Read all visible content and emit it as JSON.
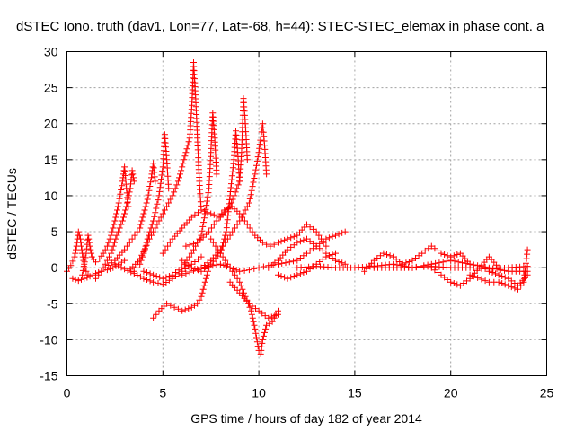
{
  "chart_data": {
    "type": "scatter",
    "title": "dSTEC Iono. truth (dav1, Lon=77, Lat=-68, h=44): STEC-STEC_elemax in phase cont. a",
    "xlabel": "GPS time / hours of day 182 of year 2014",
    "ylabel": "dSTEC  / TECUs",
    "xlim": [
      0,
      25
    ],
    "ylim": [
      -15,
      30
    ],
    "xticks": [
      0,
      5,
      10,
      15,
      20,
      25
    ],
    "yticks": [
      -15,
      -10,
      -5,
      0,
      5,
      10,
      15,
      20,
      25,
      30
    ],
    "grid": true,
    "marker": "+",
    "series_color": "#ff0000",
    "series": [
      {
        "arcs": [
          [
            [
              0.0,
              -0.5
            ],
            [
              0.2,
              0.3
            ],
            [
              0.4,
              1.5
            ],
            [
              0.5,
              3.0
            ],
            [
              0.6,
              5.0
            ],
            [
              0.7,
              4.0
            ],
            [
              0.8,
              2.0
            ],
            [
              0.9,
              0.5
            ],
            [
              1.0,
              -0.5
            ],
            [
              1.1,
              -1.0
            ]
          ],
          [
            [
              0.3,
              -1.5
            ],
            [
              0.6,
              -1.8
            ],
            [
              0.9,
              -1.5
            ],
            [
              1.2,
              -1.2
            ],
            [
              1.5,
              -0.8
            ],
            [
              1.8,
              -0.5
            ],
            [
              2.1,
              -0.3
            ],
            [
              2.4,
              0.0
            ],
            [
              2.7,
              0.5
            ],
            [
              3.0,
              1.0
            ]
          ],
          [
            [
              0.8,
              -1.0
            ],
            [
              1.0,
              2.0
            ],
            [
              1.1,
              4.5
            ],
            [
              1.2,
              3.0
            ],
            [
              1.3,
              1.5
            ],
            [
              1.5,
              0.8
            ],
            [
              1.7,
              1.2
            ],
            [
              1.9,
              2.0
            ],
            [
              2.1,
              3.0
            ],
            [
              2.3,
              4.5
            ],
            [
              2.5,
              6.5
            ],
            [
              2.7,
              9.0
            ],
            [
              2.9,
              12.0
            ],
            [
              3.0,
              14.0
            ],
            [
              3.1,
              11.0
            ],
            [
              3.2,
              8.5
            ]
          ],
          [
            [
              1.5,
              -1.5
            ],
            [
              1.8,
              -0.5
            ],
            [
              2.0,
              0.5
            ],
            [
              2.3,
              2.0
            ],
            [
              2.6,
              4.5
            ],
            [
              2.9,
              6.5
            ],
            [
              3.1,
              8.5
            ],
            [
              3.3,
              11.0
            ],
            [
              3.4,
              13.5
            ],
            [
              3.5,
              12.0
            ]
          ],
          [
            [
              2.0,
              0.0
            ],
            [
              2.5,
              1.0
            ],
            [
              3.0,
              2.5
            ],
            [
              3.4,
              4.0
            ],
            [
              3.8,
              5.5
            ],
            [
              4.0,
              7.5
            ],
            [
              4.2,
              9.5
            ],
            [
              4.4,
              12.5
            ],
            [
              4.5,
              14.5
            ],
            [
              4.6,
              12.0
            ]
          ],
          [
            [
              3.5,
              -0.5
            ],
            [
              3.8,
              0.5
            ],
            [
              4.0,
              2.0
            ],
            [
              4.2,
              4.0
            ],
            [
              4.5,
              6.5
            ],
            [
              4.8,
              10.0
            ],
            [
              5.0,
              14.0
            ],
            [
              5.1,
              18.5
            ],
            [
              5.2,
              15.0
            ],
            [
              5.3,
              11.0
            ]
          ],
          [
            [
              3.3,
              -0.2
            ],
            [
              3.7,
              0.8
            ],
            [
              4.0,
              2.2
            ],
            [
              4.3,
              4.0
            ],
            [
              4.6,
              5.5
            ],
            [
              4.9,
              7.0
            ],
            [
              5.2,
              8.5
            ],
            [
              5.5,
              10.0
            ],
            [
              5.8,
              12.0
            ],
            [
              6.0,
              14.0
            ],
            [
              6.2,
              16.0
            ],
            [
              6.4,
              18.0
            ],
            [
              6.5,
              22.0
            ],
            [
              6.6,
              28.5
            ],
            [
              6.7,
              24.0
            ],
            [
              6.8,
              18.0
            ],
            [
              6.9,
              12.0
            ],
            [
              7.0,
              8.0
            ]
          ],
          [
            [
              4.5,
              -7.0
            ],
            [
              4.8,
              -6.0
            ],
            [
              5.2,
              -5.0
            ],
            [
              5.6,
              -5.5
            ],
            [
              6.0,
              -6.0
            ],
            [
              6.5,
              -5.5
            ],
            [
              6.8,
              -5.0
            ],
            [
              7.0,
              -4.0
            ],
            [
              7.2,
              -2.0
            ],
            [
              7.4,
              0.0
            ]
          ],
          [
            [
              2.5,
              0.5
            ],
            [
              3.0,
              -0.2
            ],
            [
              3.5,
              -0.8
            ],
            [
              4.0,
              -1.5
            ],
            [
              4.5,
              -2.0
            ],
            [
              5.0,
              -2.3
            ],
            [
              5.5,
              -1.5
            ],
            [
              6.0,
              -0.5
            ],
            [
              6.5,
              0.5
            ],
            [
              7.0,
              1.5
            ]
          ],
          [
            [
              4.0,
              -0.5
            ],
            [
              4.5,
              -1.0
            ],
            [
              5.0,
              -1.5
            ],
            [
              5.5,
              -1.0
            ],
            [
              6.0,
              0.0
            ],
            [
              6.5,
              2.0
            ],
            [
              7.0,
              4.5
            ],
            [
              7.2,
              7.5
            ],
            [
              7.4,
              11.0
            ],
            [
              7.5,
              16.0
            ],
            [
              7.6,
              21.5
            ],
            [
              7.7,
              18.0
            ],
            [
              7.8,
              13.0
            ]
          ],
          [
            [
              5.0,
              2.0
            ],
            [
              5.5,
              4.0
            ],
            [
              6.0,
              5.5
            ],
            [
              6.5,
              7.0
            ],
            [
              7.0,
              8.0
            ],
            [
              7.5,
              7.5
            ],
            [
              8.0,
              7.0
            ],
            [
              8.5,
              8.5
            ],
            [
              9.0,
              12.0
            ],
            [
              9.1,
              16.0
            ],
            [
              9.2,
              23.5
            ],
            [
              9.3,
              20.0
            ],
            [
              9.4,
              15.0
            ]
          ],
          [
            [
              6.0,
              1.0
            ],
            [
              6.5,
              0.0
            ],
            [
              7.0,
              -0.5
            ],
            [
              7.5,
              0.5
            ],
            [
              8.0,
              2.0
            ],
            [
              8.3,
              5.0
            ],
            [
              8.5,
              10.0
            ],
            [
              8.7,
              15.0
            ],
            [
              8.8,
              19.0
            ],
            [
              8.9,
              16.0
            ],
            [
              9.0,
              12.0
            ]
          ],
          [
            [
              7.0,
              0.0
            ],
            [
              7.5,
              1.0
            ],
            [
              8.0,
              2.5
            ],
            [
              8.5,
              4.5
            ],
            [
              9.0,
              6.5
            ],
            [
              9.5,
              9.0
            ],
            [
              9.8,
              13.0
            ],
            [
              10.0,
              16.0
            ],
            [
              10.2,
              20.0
            ],
            [
              10.3,
              17.0
            ],
            [
              10.4,
              13.0
            ]
          ],
          [
            [
              6.2,
              3.0
            ],
            [
              6.8,
              3.5
            ],
            [
              7.4,
              5.0
            ],
            [
              7.8,
              6.5
            ],
            [
              8.2,
              8.0
            ],
            [
              8.6,
              8.5
            ],
            [
              9.0,
              7.5
            ],
            [
              9.4,
              6.0
            ],
            [
              9.8,
              4.5
            ],
            [
              10.2,
              3.5
            ],
            [
              10.6,
              3.0
            ],
            [
              11.0,
              3.5
            ],
            [
              11.5,
              4.0
            ],
            [
              12.0,
              4.5
            ],
            [
              12.5,
              6.0
            ],
            [
              13.0,
              5.0
            ],
            [
              13.5,
              3.0
            ]
          ],
          [
            [
              7.5,
              4.0
            ],
            [
              8.0,
              2.0
            ],
            [
              8.5,
              0.0
            ],
            [
              9.0,
              -2.0
            ],
            [
              9.3,
              -4.0
            ],
            [
              9.6,
              -6.0
            ],
            [
              9.8,
              -8.5
            ],
            [
              10.0,
              -11.5
            ],
            [
              10.1,
              -12.0
            ],
            [
              10.2,
              -10.0
            ],
            [
              10.4,
              -8.0
            ],
            [
              10.7,
              -7.5
            ],
            [
              11.0,
              -6.0
            ]
          ],
          [
            [
              8.5,
              -2.0
            ],
            [
              9.0,
              -3.5
            ],
            [
              9.5,
              -5.0
            ],
            [
              10.0,
              -6.0
            ],
            [
              10.5,
              -7.0
            ],
            [
              11.0,
              -6.5
            ]
          ],
          [
            [
              6.0,
              -1.0
            ],
            [
              7.0,
              0.0
            ],
            [
              8.0,
              0.5
            ],
            [
              8.5,
              0.0
            ],
            [
              9.0,
              -0.5
            ],
            [
              9.5,
              -0.3
            ],
            [
              10.0,
              0.0
            ],
            [
              10.5,
              0.3
            ],
            [
              11.0,
              0.5
            ],
            [
              12.0,
              1.0
            ],
            [
              12.5,
              2.0
            ],
            [
              13.0,
              3.0
            ],
            [
              13.5,
              4.0
            ],
            [
              14.0,
              4.5
            ],
            [
              14.5,
              5.0
            ]
          ],
          [
            [
              11.0,
              -1.0
            ],
            [
              11.5,
              -1.5
            ],
            [
              12.0,
              -1.0
            ],
            [
              12.5,
              -0.5
            ],
            [
              13.0,
              0.5
            ],
            [
              13.5,
              1.5
            ],
            [
              14.0,
              2.0
            ]
          ],
          [
            [
              10.5,
              0.0
            ],
            [
              11.0,
              1.0
            ],
            [
              11.5,
              2.5
            ],
            [
              12.0,
              3.5
            ],
            [
              12.5,
              4.0
            ],
            [
              13.0,
              3.0
            ],
            [
              13.5,
              2.0
            ],
            [
              14.0,
              1.0
            ],
            [
              14.5,
              0.5
            ]
          ],
          [
            [
              12.0,
              0.0
            ],
            [
              13.0,
              0.2
            ],
            [
              14.0,
              0.0
            ],
            [
              15.0,
              0.0
            ],
            [
              16.0,
              0.2
            ],
            [
              17.0,
              0.5
            ],
            [
              18.0,
              0.0
            ],
            [
              19.0,
              0.5
            ],
            [
              20.0,
              1.0
            ],
            [
              21.0,
              0.5
            ],
            [
              22.0,
              0.0
            ],
            [
              23.0,
              -0.5
            ],
            [
              24.0,
              -0.5
            ]
          ],
          [
            [
              15.5,
              -0.5
            ],
            [
              16.0,
              1.0
            ],
            [
              16.5,
              2.0
            ],
            [
              17.0,
              1.5
            ],
            [
              17.5,
              0.5
            ],
            [
              18.0,
              1.0
            ],
            [
              18.5,
              2.0
            ],
            [
              19.0,
              3.0
            ],
            [
              19.5,
              2.0
            ],
            [
              20.0,
              1.5
            ],
            [
              20.5,
              2.0
            ],
            [
              21.0,
              0.5
            ]
          ],
          [
            [
              19.0,
              0.0
            ],
            [
              19.5,
              -1.0
            ],
            [
              20.0,
              -2.0
            ],
            [
              20.5,
              -2.5
            ],
            [
              21.0,
              -1.5
            ],
            [
              21.5,
              0.0
            ],
            [
              22.0,
              1.5
            ],
            [
              22.5,
              0.0
            ]
          ],
          [
            [
              21.0,
              -1.0
            ],
            [
              22.0,
              -2.0
            ],
            [
              22.5,
              -2.0
            ],
            [
              23.0,
              -2.5
            ],
            [
              23.5,
              -3.0
            ],
            [
              23.8,
              -2.0
            ],
            [
              23.9,
              0.0
            ],
            [
              24.0,
              2.5
            ]
          ],
          [
            [
              22.0,
              -0.5
            ],
            [
              22.5,
              -1.0
            ],
            [
              23.0,
              -1.5
            ],
            [
              23.5,
              -2.5
            ],
            [
              24.0,
              -1.0
            ]
          ],
          [
            [
              16.0,
              0.0
            ],
            [
              17.0,
              0.0
            ],
            [
              18.0,
              0.0
            ],
            [
              19.0,
              0.2
            ],
            [
              20.0,
              0.0
            ],
            [
              21.0,
              0.0
            ],
            [
              22.0,
              -0.2
            ],
            [
              23.0,
              0.0
            ],
            [
              24.0,
              0.2
            ]
          ]
        ]
      }
    ]
  }
}
